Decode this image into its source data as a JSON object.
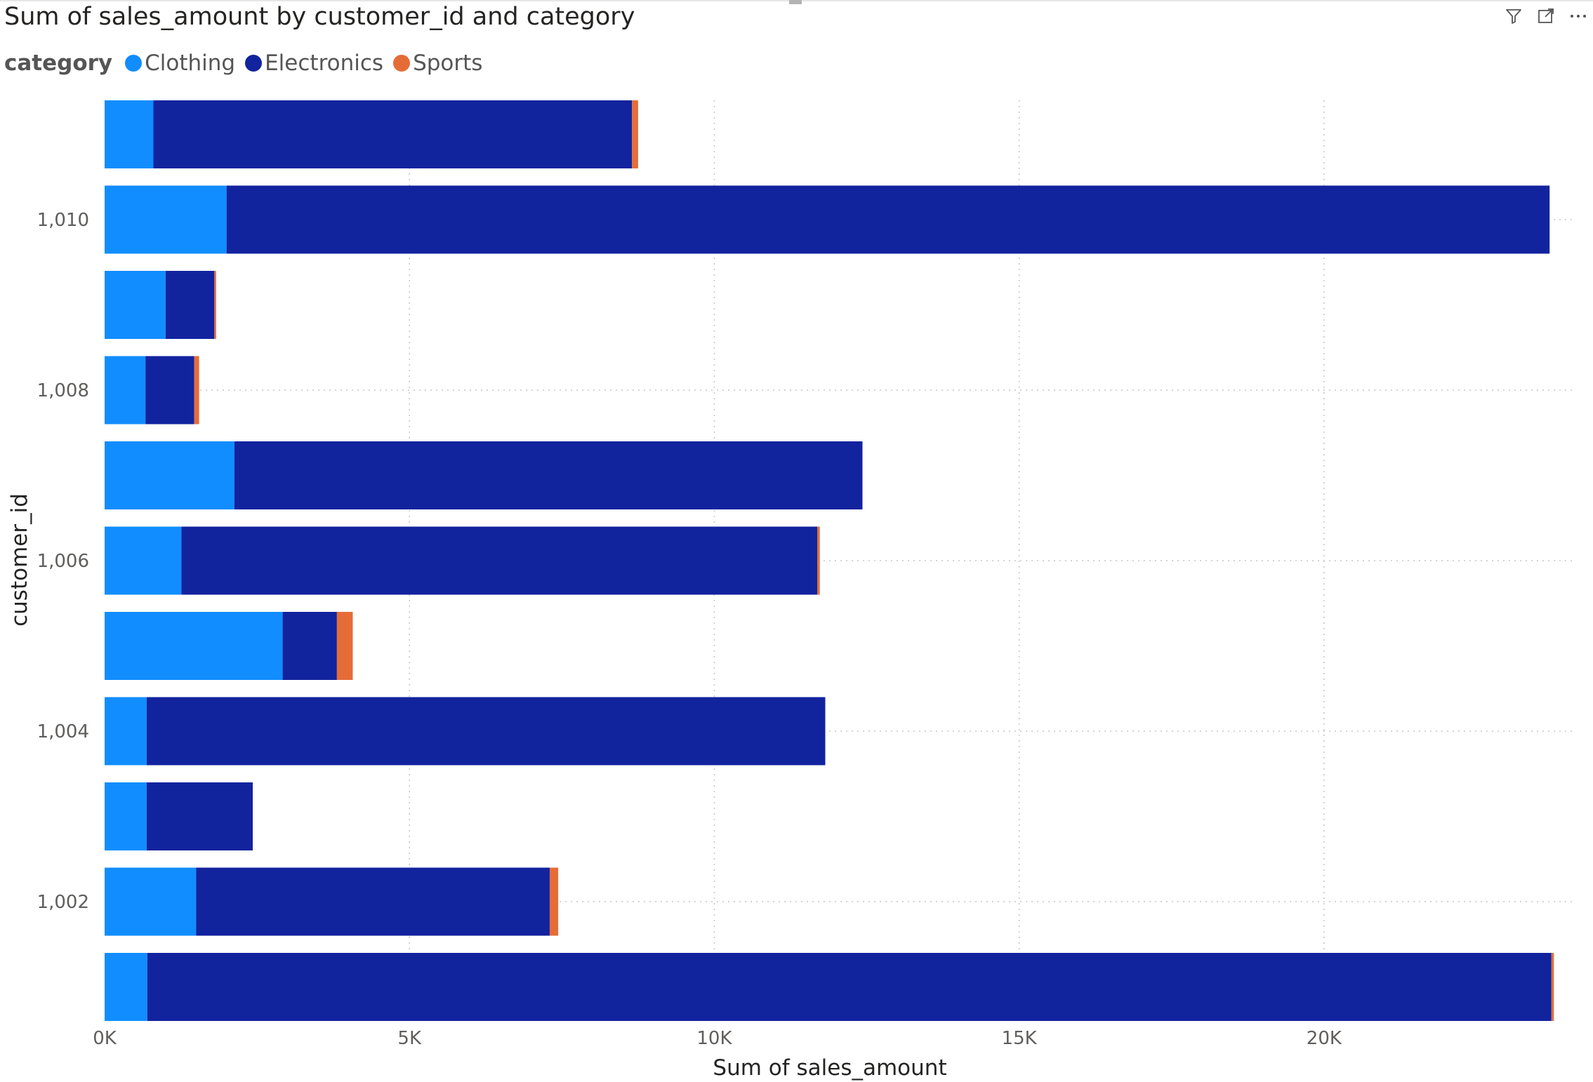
{
  "visual": {
    "title": "Sum of sales_amount by customer_id and category"
  },
  "toolbar": {
    "filter_icon": "filter-icon",
    "focus_icon": "focus-mode-icon",
    "more_icon": "more-options-icon"
  },
  "legend": {
    "title": "category",
    "items": [
      {
        "label": "Clothing",
        "color": "#118DFF"
      },
      {
        "label": "Electronics",
        "color": "#12239E"
      },
      {
        "label": "Sports",
        "color": "#E66C37"
      }
    ]
  },
  "chart_data": {
    "type": "bar",
    "orientation": "horizontal",
    "stacked": true,
    "title": "Sum of sales_amount by customer_id and category",
    "xlabel": "Sum of sales_amount",
    "ylabel": "customer_id",
    "categories": [
      "",
      "1,010",
      "",
      "1,008",
      "",
      "1,006",
      "",
      "1,004",
      "",
      "1,002",
      ""
    ],
    "series": [
      {
        "name": "Clothing",
        "color": "#118DFF",
        "values": [
          800,
          2000,
          1000,
          670,
          2130,
          1260,
          2920,
          690,
          690,
          1500,
          700
        ]
      },
      {
        "name": "Electronics",
        "color": "#12239E",
        "values": [
          7850,
          21700,
          800,
          800,
          10300,
          10430,
          890,
          11130,
          1740,
          5800,
          23030
        ]
      },
      {
        "name": "Sports",
        "color": "#E66C37",
        "values": [
          100,
          0,
          20,
          80,
          0,
          40,
          260,
          0,
          0,
          140,
          40
        ]
      }
    ],
    "xticks": [
      "0K",
      "5K",
      "10K",
      "15K",
      "20K"
    ],
    "xtick_values": [
      0,
      5000,
      10000,
      15000,
      20000
    ],
    "xlim": [
      0,
      23800
    ],
    "grid": true,
    "legend_position": "top-left"
  }
}
